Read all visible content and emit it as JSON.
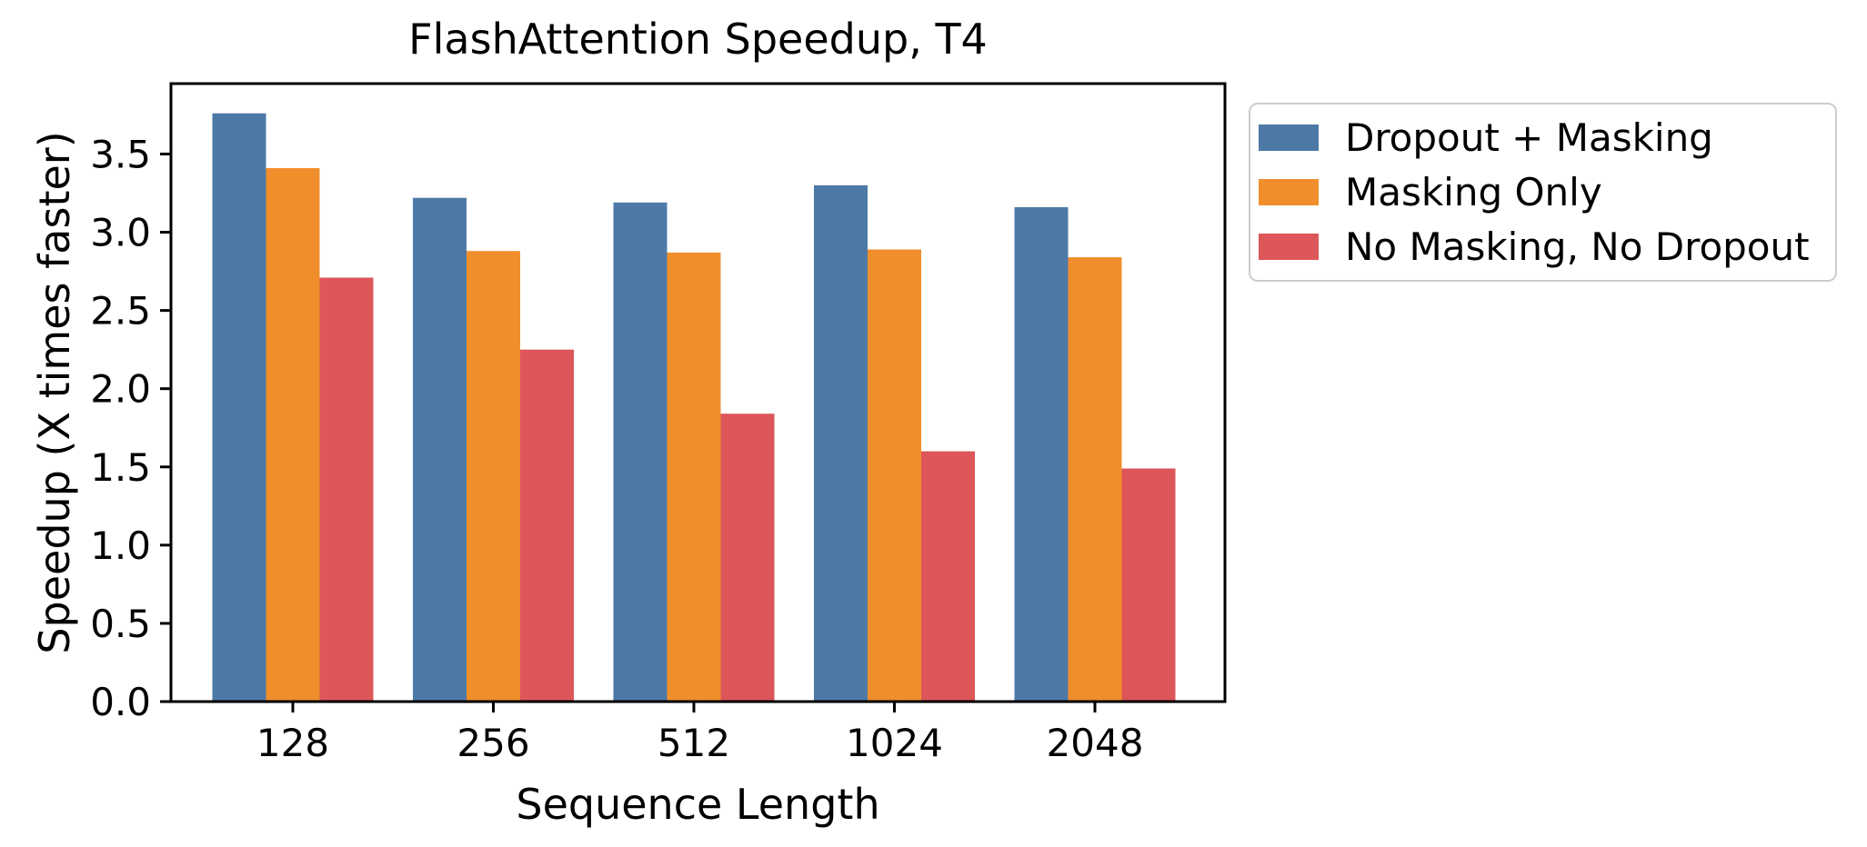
{
  "chart_data": {
    "type": "bar",
    "title": "FlashAttention Speedup, T4",
    "xlabel": "Sequence Length",
    "ylabel": "Speedup (X times faster)",
    "categories": [
      "128",
      "256",
      "512",
      "1024",
      "2048"
    ],
    "series": [
      {
        "name": "Dropout + Masking",
        "color": "#4d79a7",
        "values": [
          3.76,
          3.22,
          3.19,
          3.3,
          3.16
        ]
      },
      {
        "name": "Masking Only",
        "color": "#f08e2c",
        "values": [
          3.41,
          2.88,
          2.87,
          2.89,
          2.84
        ]
      },
      {
        "name": "No Masking, No Dropout",
        "color": "#dd5659",
        "values": [
          2.71,
          2.25,
          1.84,
          1.6,
          1.49
        ]
      }
    ],
    "y_ticks": [
      "0.0",
      "0.5",
      "1.0",
      "1.5",
      "2.0",
      "2.5",
      "3.0",
      "3.5"
    ],
    "ylim": [
      0,
      3.95
    ],
    "grid": false,
    "legend_position": "outside-upper-right",
    "axis_color": "#000000",
    "background_color": "#ffffff"
  }
}
